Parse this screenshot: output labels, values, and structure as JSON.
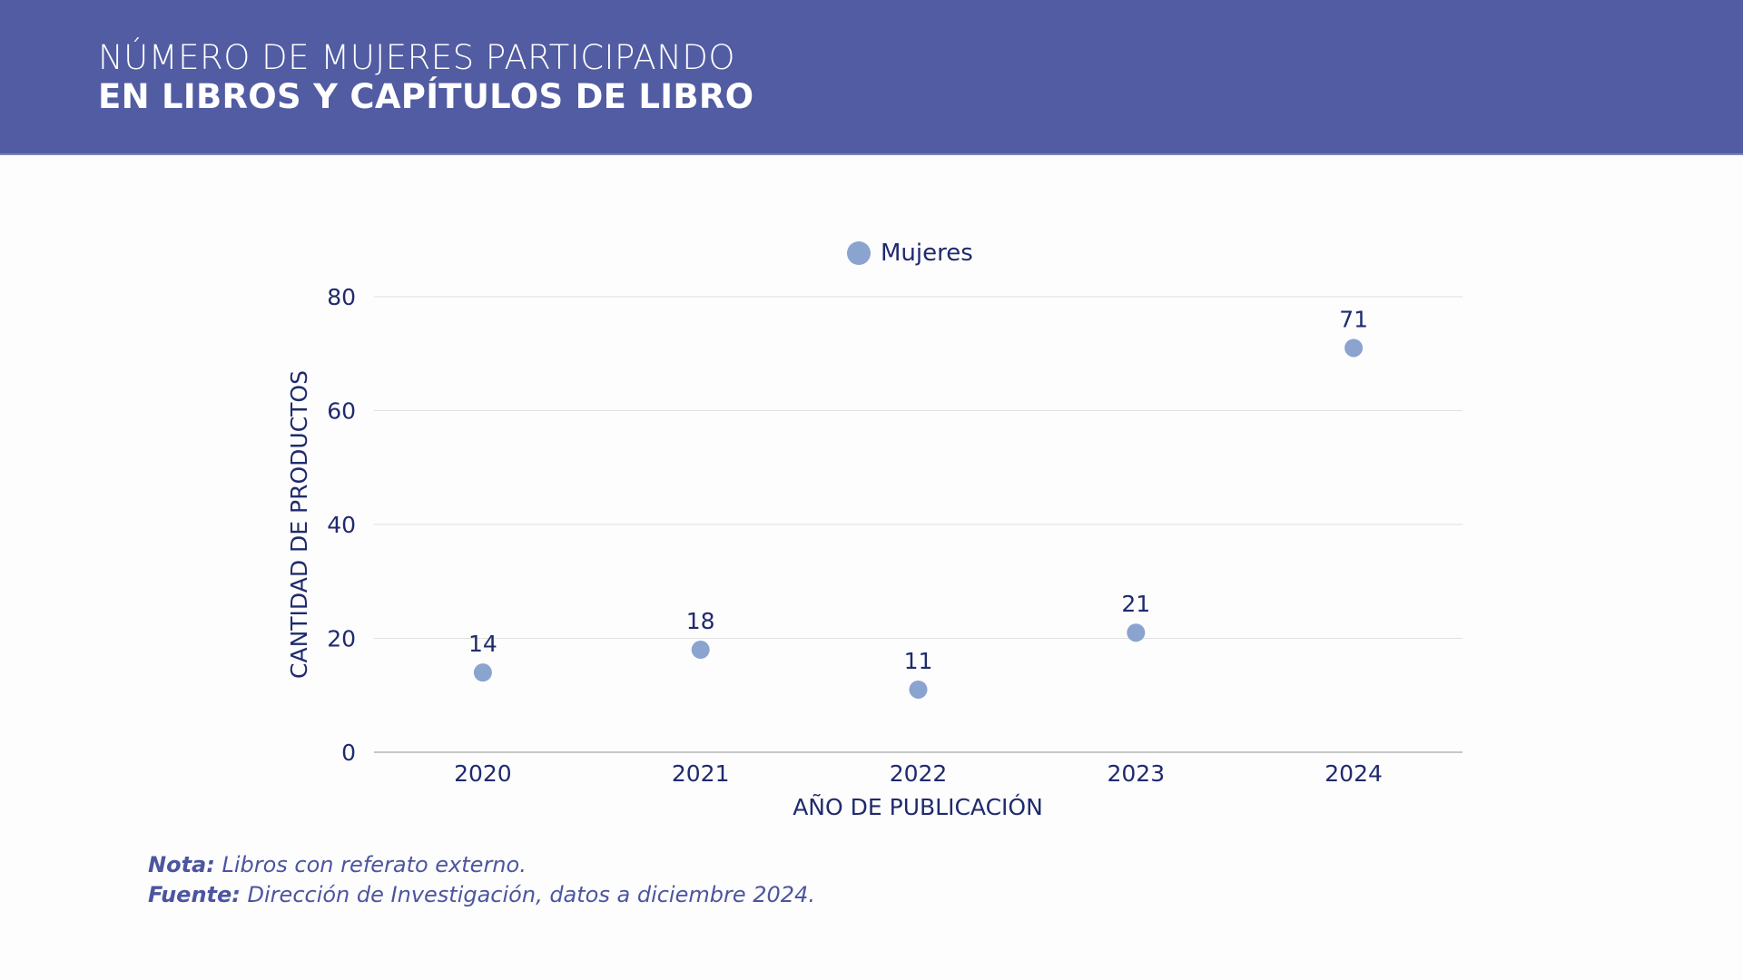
{
  "header": {
    "title_line1": "NÚMERO DE MUJERES PARTICIPANDO",
    "title_line2": "EN LIBROS Y CAPÍTULOS DE LIBRO",
    "background_color": "#525ca2"
  },
  "chart_data": {
    "type": "scatter",
    "title": "NÚMERO DE MUJERES PARTICIPANDO EN LIBROS Y CAPÍTULOS DE LIBRO",
    "categories": [
      "2020",
      "2021",
      "2022",
      "2023",
      "2024"
    ],
    "series": [
      {
        "name": "Mujeres",
        "values": [
          14,
          18,
          11,
          21,
          71
        ],
        "color": "#8aa3cf"
      }
    ],
    "data_labels": [
      "14",
      "18",
      "11",
      "21",
      "71"
    ],
    "xlabel": "AÑO DE PUBLICACIÓN",
    "ylabel": "CANTIDAD DE PRODUCTOS",
    "ylim": [
      0,
      80
    ],
    "yticks": [
      0,
      20,
      40,
      60,
      80
    ],
    "grid": true,
    "legend": {
      "position": "top-center",
      "entries": [
        "Mujeres"
      ]
    },
    "text_color": "#1f2a6e",
    "grid_color": "#e0e0e0",
    "axis_color": "#b5b5b5"
  },
  "notes": {
    "nota_label": "Nota:",
    "nota_text": " Libros con referato externo.",
    "fuente_label": "Fuente:",
    "fuente_text": " Dirección de Investigación, datos a diciembre 2024."
  }
}
